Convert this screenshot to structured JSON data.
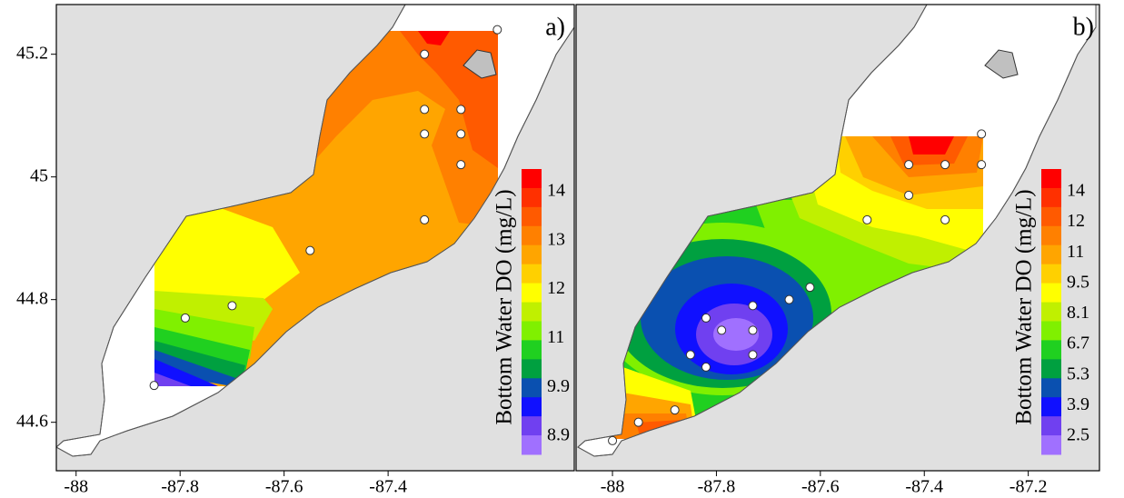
{
  "chart_data": [
    {
      "type": "contour-map",
      "panel_label": "a)",
      "xlim": [
        -88.038,
        -87.042
      ],
      "ylim": [
        44.521,
        45.281
      ],
      "xticks": [
        -88,
        -87.8,
        -87.6,
        -87.4
      ],
      "yticks": [
        45.2,
        45,
        44.8,
        44.6
      ],
      "stations": {
        "x": [
          -87.19,
          -87.33,
          -87.33,
          -87.26,
          -87.33,
          -87.26,
          -87.26,
          -87.33,
          -87.55,
          -87.7,
          -87.79,
          -87.85
        ],
        "y": [
          45.24,
          45.2,
          45.11,
          45.11,
          45.07,
          45.07,
          45.02,
          44.93,
          44.88,
          44.79,
          44.77,
          44.66
        ]
      },
      "colorbar": {
        "title": "Bottom Water DO (mg/L)",
        "ticks": [
          14,
          13,
          12,
          11,
          9.9,
          8.9
        ],
        "colors": [
          "#ff0000",
          "#ff3000",
          "#ff5a00",
          "#ff8000",
          "#ffa500",
          "#ffd000",
          "#ffff00",
          "#c0f000",
          "#80f000",
          "#20d020",
          "#00a040",
          "#0a50b0",
          "#1010ff",
          "#7040f0",
          "#a070ff"
        ]
      }
    },
    {
      "type": "contour-map",
      "panel_label": "b)",
      "xlim": [
        -88.07,
        -87.063
      ],
      "ylim": [
        44.521,
        45.281
      ],
      "xticks": [
        -88,
        -87.8,
        -87.6,
        -87.4,
        -87.2
      ],
      "stations": {
        "x": [
          -87.29,
          -87.43,
          -87.36,
          -87.29,
          -87.43,
          -87.51,
          -87.36,
          -87.62,
          -87.66,
          -87.73,
          -87.82,
          -87.79,
          -87.73,
          -87.73,
          -87.85,
          -87.82,
          -87.88,
          -87.95,
          -88.0
        ],
        "y": [
          45.07,
          45.02,
          45.02,
          45.02,
          44.97,
          44.93,
          44.93,
          44.82,
          44.8,
          44.79,
          44.77,
          44.75,
          44.75,
          44.71,
          44.71,
          44.69,
          44.62,
          44.6,
          44.57
        ]
      },
      "colorbar": {
        "title": "Bottom Water DO (mg/L)",
        "ticks": [
          14,
          12,
          11,
          9.5,
          8.1,
          6.7,
          5.3,
          3.9,
          2.5
        ],
        "colors": [
          "#ff0000",
          "#ff3000",
          "#ff5a00",
          "#ff8000",
          "#ffa500",
          "#ffd000",
          "#ffff00",
          "#c0f000",
          "#80f000",
          "#20d020",
          "#00a040",
          "#0a50b0",
          "#1010ff",
          "#7040f0",
          "#a070ff"
        ]
      }
    }
  ]
}
